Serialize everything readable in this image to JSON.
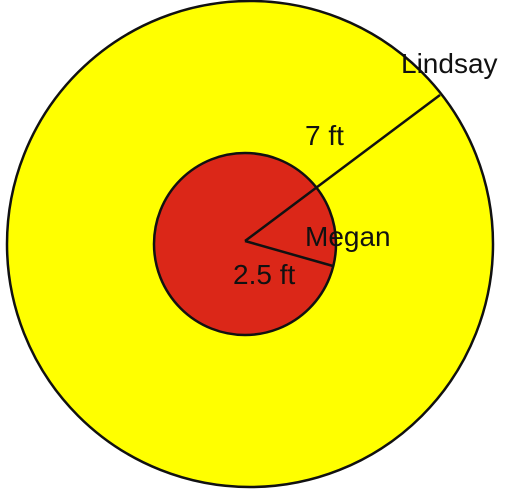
{
  "diagram": {
    "colors": {
      "outer_fill": "#FFFF00",
      "inner_fill": "#DB2718",
      "stroke": "#111111",
      "background": "#FFFFFF"
    },
    "labels": {
      "outer_person": "Lindsay",
      "inner_person": "Megan",
      "outer_radius": "7 ft",
      "inner_radius": "2.5 ft"
    },
    "outer_radius_ft": 7,
    "inner_radius_ft": 2.5
  }
}
